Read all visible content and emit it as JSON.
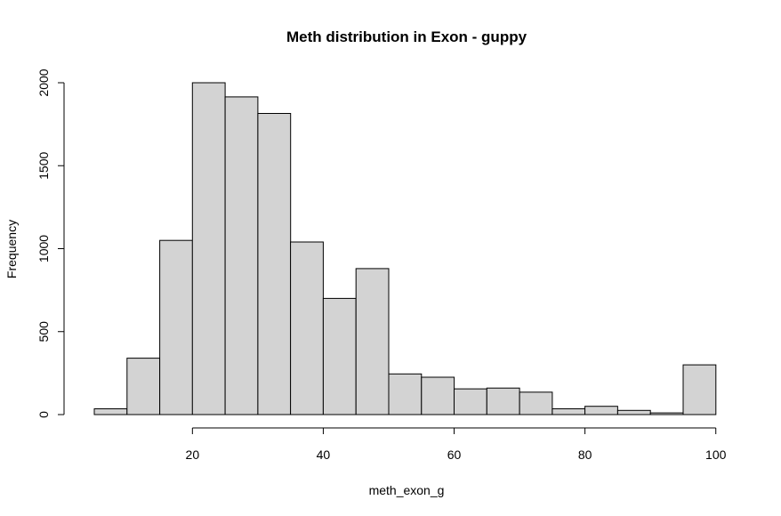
{
  "chart_data": {
    "type": "bar",
    "title": "Meth distribution in Exon - guppy",
    "xlabel": "meth_exon_g",
    "ylabel": "Frequency",
    "bin_edges": [
      5,
      10,
      15,
      20,
      25,
      30,
      35,
      40,
      45,
      50,
      55,
      60,
      65,
      70,
      75,
      80,
      85,
      90,
      95,
      100
    ],
    "values": [
      35,
      340,
      1050,
      2000,
      1915,
      1815,
      1040,
      700,
      880,
      245,
      225,
      155,
      160,
      135,
      35,
      50,
      25,
      10,
      300
    ],
    "xticks": [
      20,
      40,
      60,
      80,
      100
    ],
    "yticks": [
      0,
      500,
      1000,
      1500,
      2000
    ],
    "xlim": [
      5,
      100
    ],
    "ylim": [
      0,
      2000
    ],
    "bar_color": "#d3d3d3",
    "grid": false,
    "legend": "none"
  }
}
